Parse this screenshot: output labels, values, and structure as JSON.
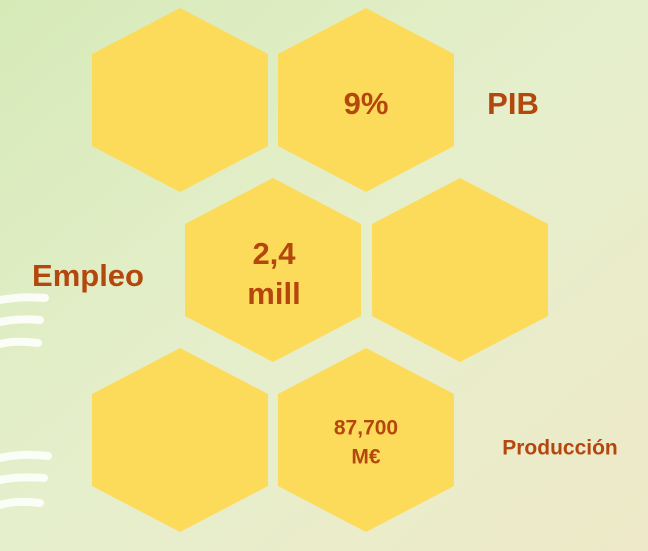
{
  "items": [
    {
      "value_lines": [
        "9%"
      ],
      "label": "PIB"
    },
    {
      "value_lines": [
        "2,4",
        "mill"
      ],
      "label": "Empleo"
    },
    {
      "value_lines": [
        "87,700",
        "M€"
      ],
      "label": "Producción"
    }
  ]
}
